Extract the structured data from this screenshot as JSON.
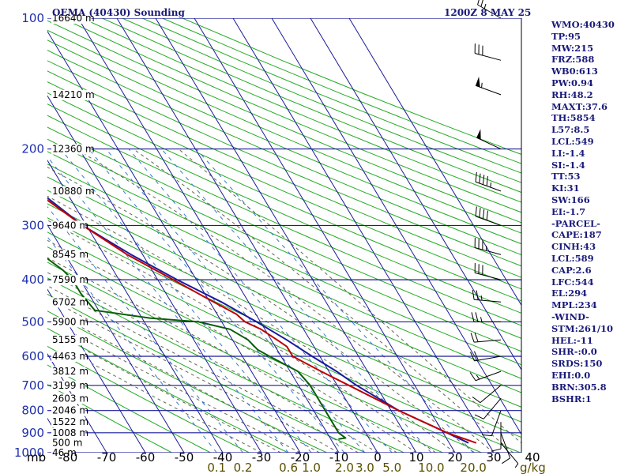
{
  "chart_data": {
    "type": "skew-t",
    "title": "OEMA (40430) Sounding",
    "datetime": "1200Z  8 MAY 25",
    "pressure_unit_label": "mb",
    "mixing_ratio_unit_label": "g/kg",
    "pressure_levels": [
      100,
      200,
      300,
      400,
      500,
      600,
      700,
      800,
      900,
      1000
    ],
    "pressure_tick_labels": [
      "100",
      "200",
      "300",
      "400",
      "500",
      "600",
      "700",
      "800",
      "900",
      "1000"
    ],
    "height_labels": [
      {
        "p": 100,
        "label": "16640 m"
      },
      {
        "p": 150,
        "label": "14210 m"
      },
      {
        "p": 200,
        "label": "12360 m"
      },
      {
        "p": 250,
        "label": "10880 m"
      },
      {
        "p": 300,
        "label": "9640 m"
      },
      {
        "p": 350,
        "label": "8545 m"
      },
      {
        "p": 400,
        "label": "7590 m"
      },
      {
        "p": 450,
        "label": "6702 m"
      },
      {
        "p": 500,
        "label": "5900 m"
      },
      {
        "p": 550,
        "label": "5155 m"
      },
      {
        "p": 600,
        "label": "4463 m"
      },
      {
        "p": 650,
        "label": "3812 m"
      },
      {
        "p": 700,
        "label": "3199 m"
      },
      {
        "p": 750,
        "label": "2603 m"
      },
      {
        "p": 800,
        "label": "2046 m"
      },
      {
        "p": 850,
        "label": "1522 m"
      },
      {
        "p": 900,
        "label": "1008 m"
      },
      {
        "p": 950,
        "label": "500 m"
      },
      {
        "p": 1000,
        "label": "46 m"
      }
    ],
    "temperature_ticks": [
      -80,
      -70,
      -60,
      -50,
      -40,
      -30,
      -20,
      -10,
      0,
      10,
      20,
      30,
      40
    ],
    "temperature_tick_labels": [
      "-80",
      "-70",
      "-60",
      "-50",
      "-40",
      "-30",
      "-20",
      "-10",
      "0",
      "10",
      "20",
      "30",
      "40"
    ],
    "mixing_ratio_labels": [
      {
        "w": 0.1,
        "label": "0.1"
      },
      {
        "w": 0.2,
        "label": "0.2"
      },
      {
        "w": 0.6,
        "label": "0.6"
      },
      {
        "w": 1.0,
        "label": "1.0"
      },
      {
        "w": 2.0,
        "label": "2.0"
      },
      {
        "w": 3.0,
        "label": "3.0"
      },
      {
        "w": 5.0,
        "label": "5.0"
      },
      {
        "w": 10.0,
        "label": "10.0"
      },
      {
        "w": 20.0,
        "label": "20.0"
      }
    ],
    "series": [
      {
        "name": "Temperature",
        "color": "#c00000",
        "points": [
          {
            "p": 100,
            "t": -68
          },
          {
            "p": 125,
            "t": -60
          },
          {
            "p": 150,
            "t": -57
          },
          {
            "p": 175,
            "t": -55.5
          },
          {
            "p": 200,
            "t": -54
          },
          {
            "p": 250,
            "t": -48
          },
          {
            "p": 300,
            "t": -41
          },
          {
            "p": 350,
            "t": -34
          },
          {
            "p": 400,
            "t": -26
          },
          {
            "p": 450,
            "t": -19
          },
          {
            "p": 480,
            "t": -15
          },
          {
            "p": 500,
            "t": -14
          },
          {
            "p": 520,
            "t": -11
          },
          {
            "p": 550,
            "t": -8.5
          },
          {
            "p": 570,
            "t": -7
          },
          {
            "p": 600,
            "t": -7
          },
          {
            "p": 650,
            "t": -2
          },
          {
            "p": 700,
            "t": 3
          },
          {
            "p": 800,
            "t": 12
          },
          {
            "p": 900,
            "t": 21
          },
          {
            "p": 950,
            "t": 27
          }
        ]
      },
      {
        "name": "Dewpoint",
        "color": "#0b5e0b",
        "points": [
          {
            "p": 140,
            "t": -87
          },
          {
            "p": 200,
            "t": -73
          },
          {
            "p": 250,
            "t": -65
          },
          {
            "p": 270,
            "t": -65
          },
          {
            "p": 300,
            "t": -62
          },
          {
            "p": 320,
            "t": -60
          },
          {
            "p": 350,
            "t": -56
          },
          {
            "p": 380,
            "t": -53
          },
          {
            "p": 400,
            "t": -52
          },
          {
            "p": 430,
            "t": -52
          },
          {
            "p": 470,
            "t": -51
          },
          {
            "p": 490,
            "t": -38
          },
          {
            "p": 500,
            "t": -26
          },
          {
            "p": 520,
            "t": -19
          },
          {
            "p": 550,
            "t": -16
          },
          {
            "p": 580,
            "t": -15
          },
          {
            "p": 600,
            "t": -13
          },
          {
            "p": 650,
            "t": -8
          },
          {
            "p": 700,
            "t": -7
          },
          {
            "p": 800,
            "t": -7
          },
          {
            "p": 900,
            "t": -7
          },
          {
            "p": 925,
            "t": -6
          },
          {
            "p": 930,
            "t": -8
          }
        ]
      },
      {
        "name": "Parcel",
        "color": "#1a1aa0",
        "points": [
          {
            "p": 100,
            "t": -76
          },
          {
            "p": 150,
            "t": -62
          },
          {
            "p": 200,
            "t": -54
          },
          {
            "p": 250,
            "t": -47
          },
          {
            "p": 300,
            "t": -41
          },
          {
            "p": 350,
            "t": -33
          },
          {
            "p": 400,
            "t": -25
          },
          {
            "p": 450,
            "t": -17
          },
          {
            "p": 500,
            "t": -11
          },
          {
            "p": 550,
            "t": -6
          },
          {
            "p": 600,
            "t": -2
          },
          {
            "p": 650,
            "t": 2
          },
          {
            "p": 700,
            "t": 5
          },
          {
            "p": 800,
            "t": 12
          },
          {
            "p": 900,
            "t": 21
          },
          {
            "p": 950,
            "t": 25
          }
        ]
      }
    ],
    "wind_barbs": [
      {
        "p": 100,
        "dir": 300,
        "spd": 25
      },
      {
        "p": 125,
        "dir": 285,
        "spd": 30
      },
      {
        "p": 150,
        "dir": 290,
        "spd": 55
      },
      {
        "p": 200,
        "dir": 295,
        "spd": 50
      },
      {
        "p": 250,
        "dir": 290,
        "spd": 45
      },
      {
        "p": 300,
        "dir": 290,
        "spd": 40
      },
      {
        "p": 350,
        "dir": 285,
        "spd": 35
      },
      {
        "p": 400,
        "dir": 285,
        "spd": 30
      },
      {
        "p": 450,
        "dir": 275,
        "spd": 25
      },
      {
        "p": 500,
        "dir": 270,
        "spd": 25
      },
      {
        "p": 550,
        "dir": 265,
        "spd": 20
      },
      {
        "p": 600,
        "dir": 260,
        "spd": 20
      },
      {
        "p": 650,
        "dir": 250,
        "spd": 15
      },
      {
        "p": 700,
        "dir": 230,
        "spd": 10
      },
      {
        "p": 750,
        "dir": 220,
        "spd": 10
      },
      {
        "p": 800,
        "dir": 200,
        "spd": 10
      },
      {
        "p": 850,
        "dir": 180,
        "spd": 10
      },
      {
        "p": 900,
        "dir": 160,
        "spd": 10
      },
      {
        "p": 950,
        "dir": 140,
        "spd": 5
      }
    ],
    "indices": [
      "WMO:40430",
      "TP:95",
      "MW:215",
      "FRZ:588",
      "WB0:613",
      "PW:0.94",
      "RH:48.2",
      "MAXT:37.6",
      "TH:5854",
      "L57:8.5",
      "LCL:549",
      "LI:-1.4",
      "SI:-1.4",
      "TT:53",
      "KI:31",
      "SW:166",
      "EI:-1.7",
      "-PARCEL-",
      "CAPE:187",
      "CINH:43",
      "LCL:589",
      "CAP:2.6",
      "LFC:544",
      "EL:294",
      "MPL:234",
      "-WIND-",
      "STM:261/10",
      "HEL:-11",
      "SHR-:0.0",
      "SRDS:150",
      "EHI:0.0",
      "BRN:305.8",
      "BSHR:1"
    ],
    "colors": {
      "grid": "#1a1a9a",
      "dry_adiabat": "#22aa22",
      "moist_adiabat": "#666655",
      "mixing_ratio": "#3a7acc",
      "temperature": "#c00000",
      "dewpoint": "#0b5e0b",
      "parcel": "#1a1aa0"
    }
  }
}
